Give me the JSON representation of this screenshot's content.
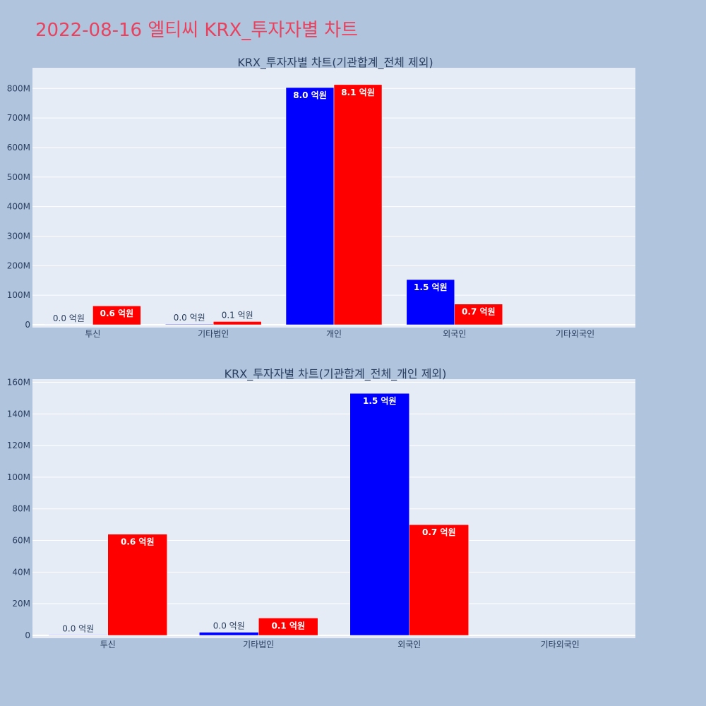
{
  "page_title": "2022-08-16 엘티씨 KRX_투자자별 차트",
  "colors": {
    "background": "#b0c4de",
    "plot_bg": "#e5ecf6",
    "series_1": "#0000ff",
    "series_2": "#ff0000",
    "title": "#e8425e"
  },
  "chart_data": [
    {
      "type": "bar",
      "title": "KRX_투자자별 차트(기관합계_전체 제외)",
      "categories": [
        "투신",
        "기타법인",
        "개인",
        "외국인",
        "기타외국인"
      ],
      "series": [
        {
          "color": "#0000ff",
          "values": [
            300000,
            2000000,
            803000000,
            153000000,
            0
          ],
          "labels": [
            "0.0 억원",
            "0.0 억원",
            "8.0 억원",
            "1.5 억원",
            ""
          ]
        },
        {
          "color": "#ff0000",
          "values": [
            64000000,
            11000000,
            813000000,
            70000000,
            0
          ],
          "labels": [
            "0.6 억원",
            "0.1 억원",
            "8.1 억원",
            "0.7 억원",
            ""
          ]
        }
      ],
      "ylim": [
        0,
        870000000
      ],
      "yticks": [
        0,
        100000000,
        200000000,
        300000000,
        400000000,
        500000000,
        600000000,
        700000000,
        800000000
      ],
      "ytick_labels": [
        "0",
        "100M",
        "200M",
        "300M",
        "400M",
        "500M",
        "600M",
        "700M",
        "800M"
      ],
      "grid": true
    },
    {
      "type": "bar",
      "title": "KRX_투자자별 차트(기관합계_전체_개인 제외)",
      "categories": [
        "투신",
        "기타법인",
        "외국인",
        "기타외국인"
      ],
      "series": [
        {
          "color": "#0000ff",
          "values": [
            300000,
            2000000,
            153000000,
            0
          ],
          "labels": [
            "0.0 억원",
            "0.0 억원",
            "1.5 억원",
            ""
          ]
        },
        {
          "color": "#ff0000",
          "values": [
            64000000,
            11000000,
            70000000,
            0
          ],
          "labels": [
            "0.6 억원",
            "0.1 억원",
            "0.7 억원",
            ""
          ]
        }
      ],
      "ylim": [
        0,
        162000000
      ],
      "yticks": [
        0,
        20000000,
        40000000,
        60000000,
        80000000,
        100000000,
        120000000,
        140000000,
        160000000
      ],
      "ytick_labels": [
        "0",
        "20M",
        "40M",
        "60M",
        "80M",
        "100M",
        "120M",
        "140M",
        "160M"
      ],
      "grid": true
    }
  ]
}
